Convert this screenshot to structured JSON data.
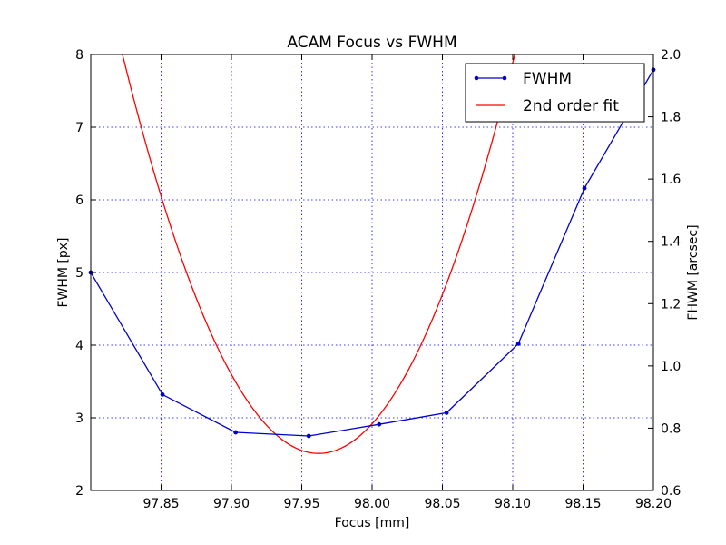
{
  "chart_data": {
    "type": "line",
    "title": "ACAM Focus vs FWHM",
    "xlabel": "Focus [mm]",
    "ylabel": "FWHM [px]",
    "ylabel_right": "FHWM [arcsec]",
    "xlim": [
      97.8,
      98.2
    ],
    "ylim": [
      2,
      8
    ],
    "ylim_right": [
      0.6,
      2.0
    ],
    "xticks": [
      97.85,
      97.9,
      97.95,
      98.0,
      98.05,
      98.1,
      98.15,
      98.2
    ],
    "xtick_labels": [
      "97.85",
      "97.90",
      "97.95",
      "98.00",
      "98.05",
      "98.10",
      "98.15",
      "98.20"
    ],
    "yticks": [
      2,
      3,
      4,
      5,
      6,
      7,
      8
    ],
    "ytick_labels": [
      "2",
      "3",
      "4",
      "5",
      "6",
      "7",
      "8"
    ],
    "yticks_right": [
      0.6,
      0.8,
      1.0,
      1.2,
      1.4,
      1.6,
      1.8,
      2.0
    ],
    "ytick_labels_right": [
      "0.6",
      "0.8",
      "1.0",
      "1.2",
      "1.4",
      "1.6",
      "1.8",
      "2.0"
    ],
    "grid": true,
    "legend_position": "top-right",
    "series": [
      {
        "name": "FWHM",
        "kind": "line-marker",
        "color": "#0000cc",
        "x": [
          97.8,
          97.851,
          97.903,
          97.955,
          98.005,
          98.053,
          98.104,
          98.151,
          98.2
        ],
        "y": [
          5.0,
          3.32,
          2.8,
          2.75,
          2.91,
          3.07,
          4.02,
          6.16,
          7.79
        ]
      },
      {
        "name": "2nd order fit",
        "kind": "line",
        "color": "#ff0000",
        "fit": {
          "a": 282.35,
          "vertex_x": 97.962,
          "vertex_y": 2.51
        }
      }
    ]
  }
}
